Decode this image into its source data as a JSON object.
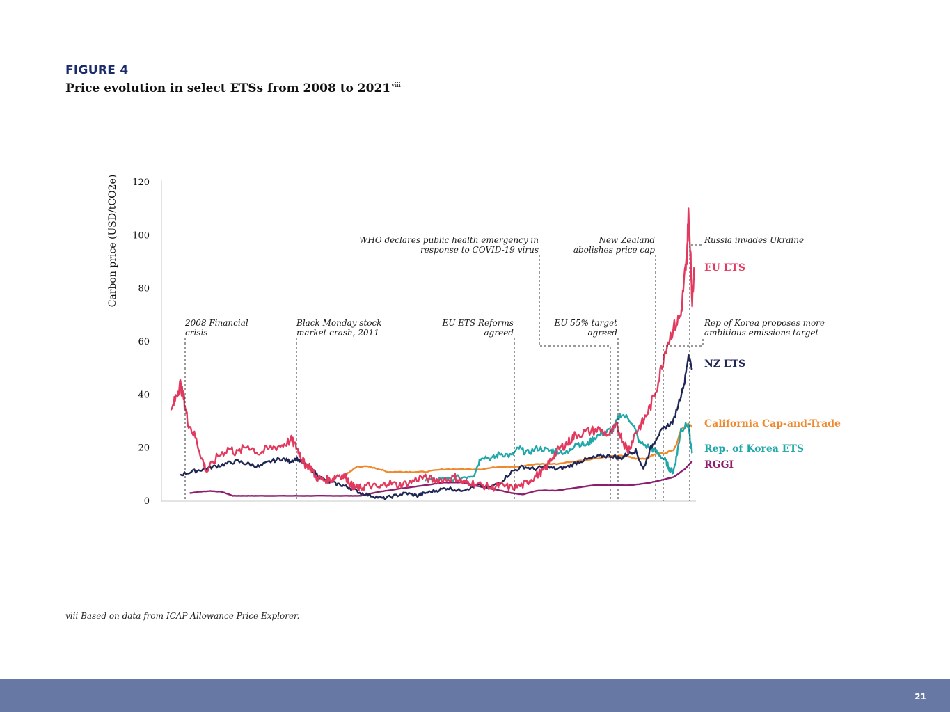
{
  "figure": {
    "label": "FIGURE 4",
    "title": "Price evolution in select ETSs from 2008 to 2021",
    "title_sup": "viii"
  },
  "footnote": "viii Based on data from ICAP Allowance Price Explorer.",
  "page_number": "21",
  "colors": {
    "eu_ets": "#e23a5e",
    "nz_ets": "#1f2655",
    "california": "#ee8a2d",
    "korea": "#20a7a9",
    "rggi": "#8b1f6e",
    "footer": "#6878a4",
    "figure_label": "#1b2a6b"
  },
  "chart_data": {
    "type": "line",
    "title": "",
    "xlabel": "",
    "ylabel": "Carbon price (USD/tCO2e)",
    "xlim": [
      2008.0,
      2022.2
    ],
    "ylim": [
      0,
      120
    ],
    "yticks": [
      0,
      20,
      40,
      60,
      80,
      100,
      120
    ],
    "grid": false,
    "legend": "right, inline labels",
    "series": [
      {
        "key": "eu",
        "name": "EU ETS",
        "color": "#e23a5e",
        "x": [
          2008.25,
          2008.4,
          2008.5,
          2008.6,
          2008.7,
          2008.9,
          2009.1,
          2009.2,
          2009.5,
          2009.8,
          2010.0,
          2010.3,
          2010.6,
          2010.9,
          2011.2,
          2011.45,
          2011.6,
          2011.7,
          2011.8,
          2011.95,
          2012.1,
          2012.3,
          2012.5,
          2012.7,
          2012.9,
          2013.05,
          2013.15,
          2013.3,
          2013.5,
          2013.8,
          2014.0,
          2014.3,
          2014.6,
          2014.9,
          2015.2,
          2015.5,
          2015.8,
          2016.0,
          2016.2,
          2016.5,
          2016.8,
          2017.0,
          2017.3,
          2017.6,
          2017.8,
          2018.0,
          2018.2,
          2018.4,
          2018.6,
          2018.8,
          2019.0,
          2019.3,
          2019.6,
          2019.9,
          2020.1,
          2020.25,
          2020.4,
          2020.6,
          2020.8,
          2021.0,
          2021.2,
          2021.4,
          2021.6,
          2021.8,
          2021.9,
          2021.95,
          2022.0,
          2022.05,
          2022.1,
          2022.15
        ],
        "y": [
          33,
          40,
          44,
          38,
          30,
          24,
          15,
          11,
          17,
          20,
          18,
          21,
          18,
          20,
          21,
          23,
          20,
          17,
          14,
          13,
          9,
          8,
          8,
          10,
          9,
          6,
          5,
          5,
          6,
          5,
          7,
          6,
          7,
          9,
          8,
          8,
          9,
          7,
          7,
          6,
          5,
          6,
          5,
          6,
          8,
          10,
          12,
          17,
          20,
          22,
          25,
          26,
          27,
          25,
          28,
          23,
          19,
          26,
          30,
          36,
          45,
          58,
          65,
          70,
          85,
          90,
          108,
          95,
          75,
          88
        ]
      },
      {
        "key": "nz",
        "name": "NZ ETS",
        "color": "#1f2655",
        "x": [
          2008.5,
          2008.8,
          2009.1,
          2009.4,
          2009.7,
          2010.0,
          2010.3,
          2010.6,
          2010.9,
          2011.2,
          2011.4,
          2011.6,
          2011.8,
          2012.0,
          2012.2,
          2012.5,
          2012.8,
          2013.0,
          2013.3,
          2013.6,
          2013.9,
          2014.2,
          2014.5,
          2014.8,
          2015.0,
          2015.3,
          2015.6,
          2015.9,
          2016.2,
          2016.4,
          2016.7,
          2017.0,
          2017.3,
          2017.6,
          2017.9,
          2018.2,
          2018.5,
          2018.8,
          2019.1,
          2019.4,
          2019.7,
          2020.0,
          2020.2,
          2020.4,
          2020.6,
          2020.8,
          2021.0,
          2021.2,
          2021.4,
          2021.6,
          2021.8,
          2021.9,
          2022.0,
          2022.1
        ],
        "y": [
          10,
          11,
          12,
          13,
          14,
          15,
          14,
          13,
          15,
          16,
          15,
          16,
          14,
          12,
          9,
          7,
          6,
          5,
          3,
          2,
          1,
          2,
          3,
          2,
          3,
          4,
          5,
          4,
          5,
          6,
          5,
          7,
          11,
          13,
          12,
          13,
          12,
          13,
          15,
          16,
          17,
          17,
          16,
          18,
          19,
          12,
          20,
          25,
          28,
          30,
          40,
          45,
          55,
          50
        ]
      },
      {
        "key": "ca",
        "name": "California Cap-and-Trade",
        "color": "#ee8a2d",
        "x": [
          2012.9,
          2013.0,
          2013.2,
          2013.5,
          2013.8,
          2014.0,
          2014.3,
          2014.6,
          2015.0,
          2015.5,
          2016.0,
          2016.5,
          2017.0,
          2017.5,
          2018.0,
          2018.5,
          2019.0,
          2019.5,
          2020.0,
          2020.3,
          2020.6,
          2020.9,
          2021.0,
          2021.2,
          2021.4,
          2021.5,
          2021.6,
          2021.7,
          2021.8,
          2022.0,
          2022.1
        ],
        "y": [
          10,
          11,
          13,
          13,
          12,
          11,
          11,
          11,
          11,
          12,
          12,
          12,
          13,
          13,
          14,
          14,
          15,
          16,
          17,
          17,
          16,
          16,
          17,
          18,
          18,
          19,
          19,
          22,
          27,
          29,
          28
        ]
      },
      {
        "key": "kr",
        "name": "Rep. of Korea ETS",
        "color": "#20a7a9",
        "x": [
          2015.0,
          2015.5,
          2016.0,
          2016.3,
          2016.5,
          2016.8,
          2017.0,
          2017.3,
          2017.5,
          2017.7,
          2018.0,
          2018.3,
          2018.5,
          2018.8,
          2019.0,
          2019.3,
          2019.5,
          2019.8,
          2020.0,
          2020.2,
          2020.5,
          2020.7,
          2021.0,
          2021.2,
          2021.4,
          2021.5,
          2021.6,
          2021.7,
          2021.8,
          2022.0,
          2022.05,
          2022.1
        ],
        "y": [
          8,
          8,
          9,
          10,
          17,
          16,
          18,
          17,
          20,
          18,
          20,
          19,
          19,
          18,
          22,
          21,
          24,
          26,
          27,
          33,
          30,
          22,
          20,
          18,
          15,
          12,
          11,
          18,
          27,
          29,
          22,
          18
        ]
      },
      {
        "key": "rggi",
        "name": "RGGI",
        "color": "#8b1f6e",
        "x": [
          2008.75,
          2009.0,
          2009.3,
          2009.6,
          2009.9,
          2010.2,
          2010.5,
          2011.0,
          2011.5,
          2012.0,
          2012.5,
          2013.0,
          2013.3,
          2013.6,
          2014.0,
          2014.5,
          2015.0,
          2015.5,
          2016.0,
          2016.3,
          2016.6,
          2017.0,
          2017.3,
          2017.6,
          2018.0,
          2018.5,
          2019.0,
          2019.5,
          2020.0,
          2020.5,
          2021.0,
          2021.3,
          2021.6,
          2021.9,
          2022.1
        ],
        "y": [
          3,
          3.5,
          3.8,
          3.5,
          2,
          2,
          2,
          2,
          2,
          2,
          2,
          2,
          2,
          3,
          4,
          5,
          6,
          7,
          7,
          6,
          5,
          4,
          3,
          2.5,
          4,
          4,
          5,
          6,
          6,
          6,
          7,
          8,
          9,
          12,
          15
        ]
      }
    ],
    "annotations": [
      {
        "key": "fin",
        "x": 2008.75,
        "lines": [
          "2008 Financial",
          "crisis"
        ],
        "align": "start"
      },
      {
        "key": "black",
        "x": 2011.7,
        "lines": [
          "Black Monday stock",
          "market crash, 2011"
        ],
        "align": "start"
      },
      {
        "key": "reform",
        "x": 2017.5,
        "lines": [
          "EU ETS Reforms",
          "agreed"
        ],
        "align": "end"
      },
      {
        "key": "who",
        "x": 2020.2,
        "lines": [
          "WHO declares public health emergency in",
          "response to COVID-19 virus"
        ],
        "align": "end"
      },
      {
        "key": "eu55",
        "x": 2020.4,
        "lines": [
          "EU 55% target",
          "agreed"
        ],
        "align": "end"
      },
      {
        "key": "nzcap",
        "x": 2021.4,
        "lines": [
          "New Zealand",
          "abolishes price cap"
        ],
        "align": "end"
      },
      {
        "key": "korea",
        "x": 2021.6,
        "lines": [
          "Rep of Korea proposes more",
          "ambitious emissions target"
        ],
        "align": "start"
      },
      {
        "key": "russia",
        "x": 2022.15,
        "lines": [
          "Russia invades Ukraine"
        ],
        "align": "start"
      }
    ]
  }
}
